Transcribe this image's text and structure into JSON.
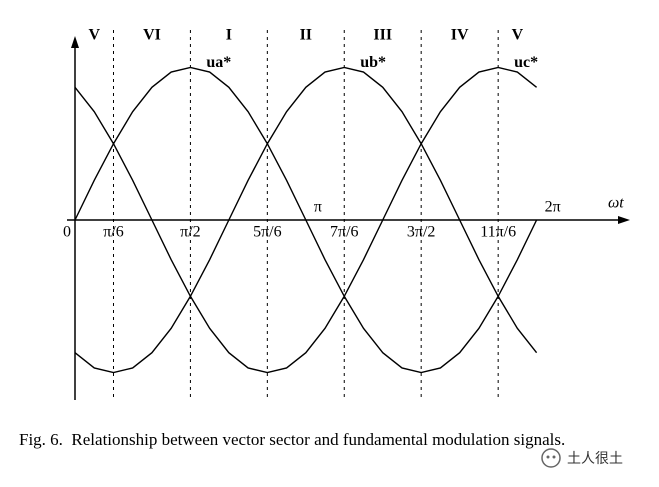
{
  "chart_data": {
    "type": "line",
    "x": [
      0,
      0.262,
      0.524,
      0.785,
      1.047,
      1.309,
      1.571,
      1.833,
      2.094,
      2.356,
      2.618,
      2.88,
      3.142,
      3.403,
      3.665,
      3.927,
      4.189,
      4.451,
      4.712,
      4.974,
      5.236,
      5.498,
      5.76,
      6.021,
      6.283
    ],
    "series": [
      {
        "name": "ua*",
        "color": "#000000",
        "values": [
          0,
          0.26,
          0.5,
          0.71,
          0.87,
          0.97,
          1,
          0.97,
          0.87,
          0.71,
          0.5,
          0.26,
          0,
          -0.26,
          -0.5,
          -0.71,
          -0.87,
          -0.97,
          -1,
          -0.97,
          -0.87,
          -0.71,
          -0.5,
          -0.26,
          0
        ]
      },
      {
        "name": "ub*",
        "color": "#000000",
        "values": [
          -0.87,
          -0.97,
          -1,
          -0.97,
          -0.87,
          -0.71,
          -0.5,
          -0.26,
          0,
          0.26,
          0.5,
          0.71,
          0.87,
          0.97,
          1,
          0.97,
          0.87,
          0.71,
          0.5,
          0.26,
          0,
          -0.26,
          -0.5,
          -0.71,
          -0.87
        ]
      },
      {
        "name": "uc*",
        "color": "#000000",
        "values": [
          0.87,
          0.71,
          0.5,
          0.26,
          0,
          -0.26,
          -0.5,
          -0.71,
          -0.87,
          -0.97,
          -1,
          -0.97,
          -0.87,
          -0.71,
          -0.5,
          -0.26,
          0,
          0.26,
          0.5,
          0.71,
          0.87,
          0.97,
          1,
          0.97,
          0.87
        ]
      }
    ],
    "xlabel": "ωt",
    "xlim": [
      0,
      7.5
    ],
    "ylim": [
      -1.18,
      1.18
    ],
    "xticks": [
      0,
      {
        "value": 0.524,
        "label": "π/6"
      },
      {
        "value": 1.571,
        "label": "π/2"
      },
      {
        "value": 2.618,
        "label": "5π/6"
      },
      {
        "value": 3.142,
        "label": "π"
      },
      {
        "value": 3.665,
        "label": "7π/6"
      },
      {
        "value": 4.712,
        "label": "3π/2"
      },
      {
        "value": 5.76,
        "label": "11π/6"
      },
      {
        "value": 6.283,
        "label": "2π"
      }
    ],
    "sectors": [
      "V",
      "VI",
      "I",
      "II",
      "III",
      "IV",
      "V"
    ],
    "grid": "dashed"
  },
  "caption": "Fig. 6.  Relationship between vector sector and fundamental modulation signals.",
  "watermark": "土人很土"
}
